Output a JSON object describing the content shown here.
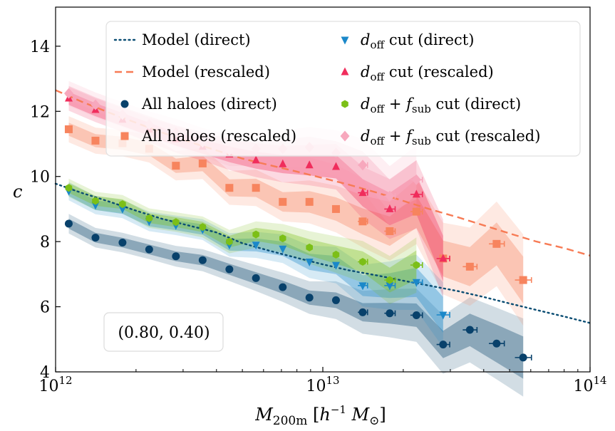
{
  "chart_data": {
    "type": "scatter",
    "title": "",
    "xlabel": "M_200m [h^-1 M_sun]",
    "xlabel_parts": {
      "main": "M",
      "sub": "200m",
      "unit_open": " [",
      "h": "h",
      "exp": "−1",
      "m": " M",
      "sun": "⊙",
      "unit_close": "]"
    },
    "ylabel": "c",
    "xscale": "log",
    "xlim": [
      1000000000000.0,
      100000000000000.0
    ],
    "ylim": [
      4,
      15.2
    ],
    "x_ticks": [
      {
        "value": 1000000000000.0,
        "base": "10",
        "exp": "12"
      },
      {
        "value": 10000000000000.0,
        "base": "10",
        "exp": "13"
      },
      {
        "value": 100000000000000.0,
        "base": "10",
        "exp": "14"
      }
    ],
    "y_ticks": [
      4,
      6,
      8,
      10,
      12,
      14
    ],
    "y_tick_labels": [
      "4",
      "6",
      "8",
      "10",
      "12",
      "14"
    ],
    "annotation": "(0.80, 0.40)",
    "grid": false,
    "legend_position": "top",
    "colors": {
      "model_direct": "#0a4d73",
      "model_rescaled": "#f77b55",
      "all_direct": "#08416b",
      "all_rescaled": "#f7845e",
      "doff_direct": "#1b88c9",
      "doff_rescaled": "#f02d5c",
      "dofffsub_direct": "#7cbf17",
      "dofffsub_rescaled": "#f7a8bd"
    },
    "models": [
      {
        "id": "model_direct",
        "name": "Model (direct)",
        "style": "dotted",
        "x": [
          1000000000000.0,
          1250000000000.0,
          1600000000000.0,
          2000000000000.0,
          2500000000000.0,
          3200000000000.0,
          4000000000000.0,
          5000000000000.0,
          6300000000000.0,
          8000000000000.0,
          10000000000000.0,
          12500000000000.0,
          16000000000000.0,
          20000000000000.0,
          25000000000000.0,
          32000000000000.0,
          40000000000000.0,
          50000000000000.0,
          63000000000000.0,
          80000000000000.0,
          100000000000000.0
        ],
        "y": [
          9.78,
          9.5,
          9.22,
          8.95,
          8.7,
          8.48,
          8.28,
          7.95,
          7.72,
          7.5,
          7.3,
          7.12,
          6.96,
          6.8,
          6.65,
          6.48,
          6.3,
          6.1,
          5.9,
          5.7,
          5.5
        ]
      },
      {
        "id": "model_rescaled",
        "name": "Model (rescaled)",
        "style": "dashed",
        "x": [
          1000000000000.0,
          1250000000000.0,
          1600000000000.0,
          2000000000000.0,
          2500000000000.0,
          3200000000000.0,
          4000000000000.0,
          5000000000000.0,
          6300000000000.0,
          8000000000000.0,
          10000000000000.0,
          12500000000000.0,
          16000000000000.0,
          20000000000000.0,
          25000000000000.0,
          32000000000000.0,
          40000000000000.0,
          50000000000000.0,
          63000000000000.0,
          80000000000000.0,
          100000000000000.0
        ],
        "y": [
          12.65,
          12.3,
          11.95,
          11.65,
          11.35,
          11.05,
          10.8,
          10.55,
          10.35,
          10.15,
          9.95,
          9.75,
          9.5,
          9.25,
          9.0,
          8.75,
          8.5,
          8.25,
          8.0,
          7.8,
          7.57
        ]
      }
    ],
    "series": [
      {
        "id": "all_direct",
        "name": "All haloes (direct)",
        "marker": "circle",
        "x": [
          1120000000000.0,
          1410000000000.0,
          1780000000000.0,
          2240000000000.0,
          2820000000000.0,
          3550000000000.0,
          4470000000000.0,
          5620000000000.0,
          7080000000000.0,
          8910000000000.0,
          11200000000000.0,
          14100000000000.0,
          17800000000000.0,
          22400000000000.0,
          28200000000000.0,
          35500000000000.0,
          44700000000000.0,
          56200000000000.0
        ],
        "y": [
          8.55,
          8.12,
          7.97,
          7.76,
          7.55,
          7.43,
          7.15,
          6.88,
          6.6,
          6.28,
          6.2,
          5.83,
          5.8,
          5.74,
          4.84,
          5.29,
          4.87,
          4.44
        ],
        "band_inner": [
          0.15,
          0.15,
          0.15,
          0.15,
          0.15,
          0.16,
          0.17,
          0.18,
          0.2,
          0.22,
          0.24,
          0.28,
          0.32,
          0.36,
          0.42,
          0.5,
          0.58,
          0.65
        ],
        "band_outer": [
          0.3,
          0.3,
          0.3,
          0.3,
          0.32,
          0.34,
          0.36,
          0.4,
          0.45,
          0.5,
          0.58,
          0.66,
          0.74,
          0.82,
          0.9,
          1.0,
          1.1,
          1.2
        ]
      },
      {
        "id": "all_rescaled",
        "name": "All haloes (rescaled)",
        "marker": "square",
        "x": [
          1120000000000.0,
          1410000000000.0,
          1780000000000.0,
          2240000000000.0,
          2820000000000.0,
          3550000000000.0,
          4470000000000.0,
          5620000000000.0,
          7080000000000.0,
          8910000000000.0,
          11200000000000.0,
          14100000000000.0,
          17800000000000.0,
          22400000000000.0,
          28200000000000.0,
          35500000000000.0,
          44700000000000.0,
          56200000000000.0
        ],
        "y": [
          11.45,
          11.1,
          11.02,
          10.85,
          10.33,
          10.4,
          9.65,
          9.65,
          9.22,
          9.22,
          9.0,
          8.62,
          8.32,
          8.92,
          7.48,
          7.23,
          7.93,
          6.82
        ],
        "band_inner": [
          0.2,
          0.2,
          0.2,
          0.2,
          0.22,
          0.24,
          0.26,
          0.28,
          0.3,
          0.33,
          0.36,
          0.4,
          0.45,
          0.5,
          0.55,
          0.6,
          0.66,
          0.72
        ],
        "band_outer": [
          0.4,
          0.4,
          0.4,
          0.42,
          0.45,
          0.48,
          0.52,
          0.56,
          0.6,
          0.66,
          0.72,
          0.8,
          0.9,
          1.0,
          1.1,
          1.2,
          1.3,
          1.4
        ]
      },
      {
        "id": "doff_direct",
        "name": "d_off cut (direct)",
        "marker": "triangle-down",
        "x": [
          1120000000000.0,
          1410000000000.0,
          1780000000000.0,
          2240000000000.0,
          2820000000000.0,
          3550000000000.0,
          4470000000000.0,
          5620000000000.0,
          7080000000000.0,
          8910000000000.0,
          11200000000000.0,
          14100000000000.0,
          17800000000000.0,
          22400000000000.0,
          28200000000000.0
        ],
        "y": [
          9.55,
          9.12,
          9.0,
          8.62,
          8.5,
          8.37,
          7.9,
          7.9,
          7.78,
          7.38,
          7.28,
          6.65,
          6.65,
          6.75,
          5.75
        ],
        "band_inner": [
          0.15,
          0.15,
          0.15,
          0.15,
          0.15,
          0.16,
          0.18,
          0.2,
          0.22,
          0.25,
          0.28,
          0.32,
          0.38,
          0.45,
          0.55
        ],
        "band_outer": [
          0.28,
          0.28,
          0.28,
          0.3,
          0.3,
          0.32,
          0.36,
          0.4,
          0.44,
          0.5,
          0.56,
          0.64,
          0.74,
          0.85,
          1.0
        ]
      },
      {
        "id": "doff_rescaled",
        "name": "d_off cut (rescaled)",
        "marker": "triangle-up",
        "x": [
          1120000000000.0,
          1410000000000.0,
          1780000000000.0,
          2240000000000.0,
          2820000000000.0,
          3550000000000.0,
          4470000000000.0,
          5620000000000.0,
          7080000000000.0,
          8910000000000.0,
          11200000000000.0,
          14100000000000.0,
          17800000000000.0,
          22400000000000.0,
          28200000000000.0
        ],
        "y": [
          12.4,
          12.05,
          11.75,
          11.45,
          11.15,
          10.92,
          10.68,
          10.5,
          10.38,
          10.35,
          10.3,
          9.5,
          9.0,
          9.45,
          7.48
        ],
        "band_inner": [
          0.2,
          0.2,
          0.2,
          0.2,
          0.2,
          0.22,
          0.24,
          0.26,
          0.28,
          0.32,
          0.36,
          0.42,
          0.5,
          0.6,
          0.7
        ],
        "band_outer": [
          0.38,
          0.38,
          0.38,
          0.4,
          0.42,
          0.44,
          0.48,
          0.52,
          0.56,
          0.62,
          0.7,
          0.8,
          0.92,
          1.05,
          1.2
        ]
      },
      {
        "id": "dofffsub_direct",
        "name": "d_off + f_sub cut (direct)",
        "marker": "hexagon",
        "x": [
          1120000000000.0,
          1410000000000.0,
          1780000000000.0,
          2240000000000.0,
          2820000000000.0,
          3550000000000.0,
          4470000000000.0,
          5620000000000.0,
          7080000000000.0,
          8910000000000.0,
          11200000000000.0,
          14100000000000.0,
          17800000000000.0,
          22400000000000.0
        ],
        "y": [
          9.65,
          9.25,
          9.15,
          8.72,
          8.6,
          8.45,
          8.0,
          8.22,
          8.1,
          7.82,
          7.6,
          7.38,
          6.82,
          7.28
        ],
        "band_inner": [
          0.15,
          0.15,
          0.15,
          0.15,
          0.15,
          0.16,
          0.18,
          0.2,
          0.22,
          0.25,
          0.28,
          0.32,
          0.38,
          0.45
        ],
        "band_outer": [
          0.28,
          0.28,
          0.28,
          0.3,
          0.3,
          0.32,
          0.36,
          0.4,
          0.44,
          0.5,
          0.56,
          0.64,
          0.74,
          0.85
        ]
      },
      {
        "id": "dofffsub_rescaled",
        "name": "d_off + f_sub cut (rescaled)",
        "marker": "diamond",
        "x": [
          1120000000000.0,
          1410000000000.0,
          1780000000000.0,
          2240000000000.0,
          2820000000000.0,
          3550000000000.0,
          4470000000000.0,
          5620000000000.0,
          7080000000000.0,
          8910000000000.0,
          11200000000000.0,
          14100000000000.0,
          17800000000000.0,
          22400000000000.0
        ],
        "y": [
          12.55,
          12.2,
          11.9,
          11.6,
          11.35,
          11.05,
          10.8,
          10.85,
          10.85,
          10.9,
          10.72,
          10.35,
          9.4,
          9.9
        ],
        "band_inner": [
          0.2,
          0.2,
          0.2,
          0.2,
          0.2,
          0.22,
          0.24,
          0.26,
          0.28,
          0.32,
          0.36,
          0.42,
          0.5,
          0.6
        ],
        "band_outer": [
          0.38,
          0.38,
          0.38,
          0.4,
          0.42,
          0.44,
          0.48,
          0.52,
          0.56,
          0.62,
          0.7,
          0.8,
          0.92,
          1.05
        ]
      }
    ],
    "legend": {
      "left": [
        {
          "ref": "model_direct",
          "label": "Model (direct)"
        },
        {
          "ref": "model_rescaled",
          "label": "Model (rescaled)"
        },
        {
          "ref": "all_direct",
          "label": "All haloes (direct)"
        },
        {
          "ref": "all_rescaled",
          "label": "All haloes (rescaled)"
        }
      ],
      "right": [
        {
          "ref": "doff_direct",
          "main": "d",
          "sub": "off",
          "rest": " cut (direct)"
        },
        {
          "ref": "doff_rescaled",
          "main": "d",
          "sub": "off",
          "rest": " cut (rescaled)"
        },
        {
          "ref": "dofffsub_direct",
          "main": "d",
          "sub": "off",
          "mid": " + ",
          "main2": "f",
          "sub2": "sub",
          "rest": " cut (direct)"
        },
        {
          "ref": "dofffsub_rescaled",
          "main": "d",
          "sub": "off",
          "mid": " + ",
          "main2": "f",
          "sub2": "sub",
          "rest": " cut (rescaled)"
        }
      ]
    }
  }
}
